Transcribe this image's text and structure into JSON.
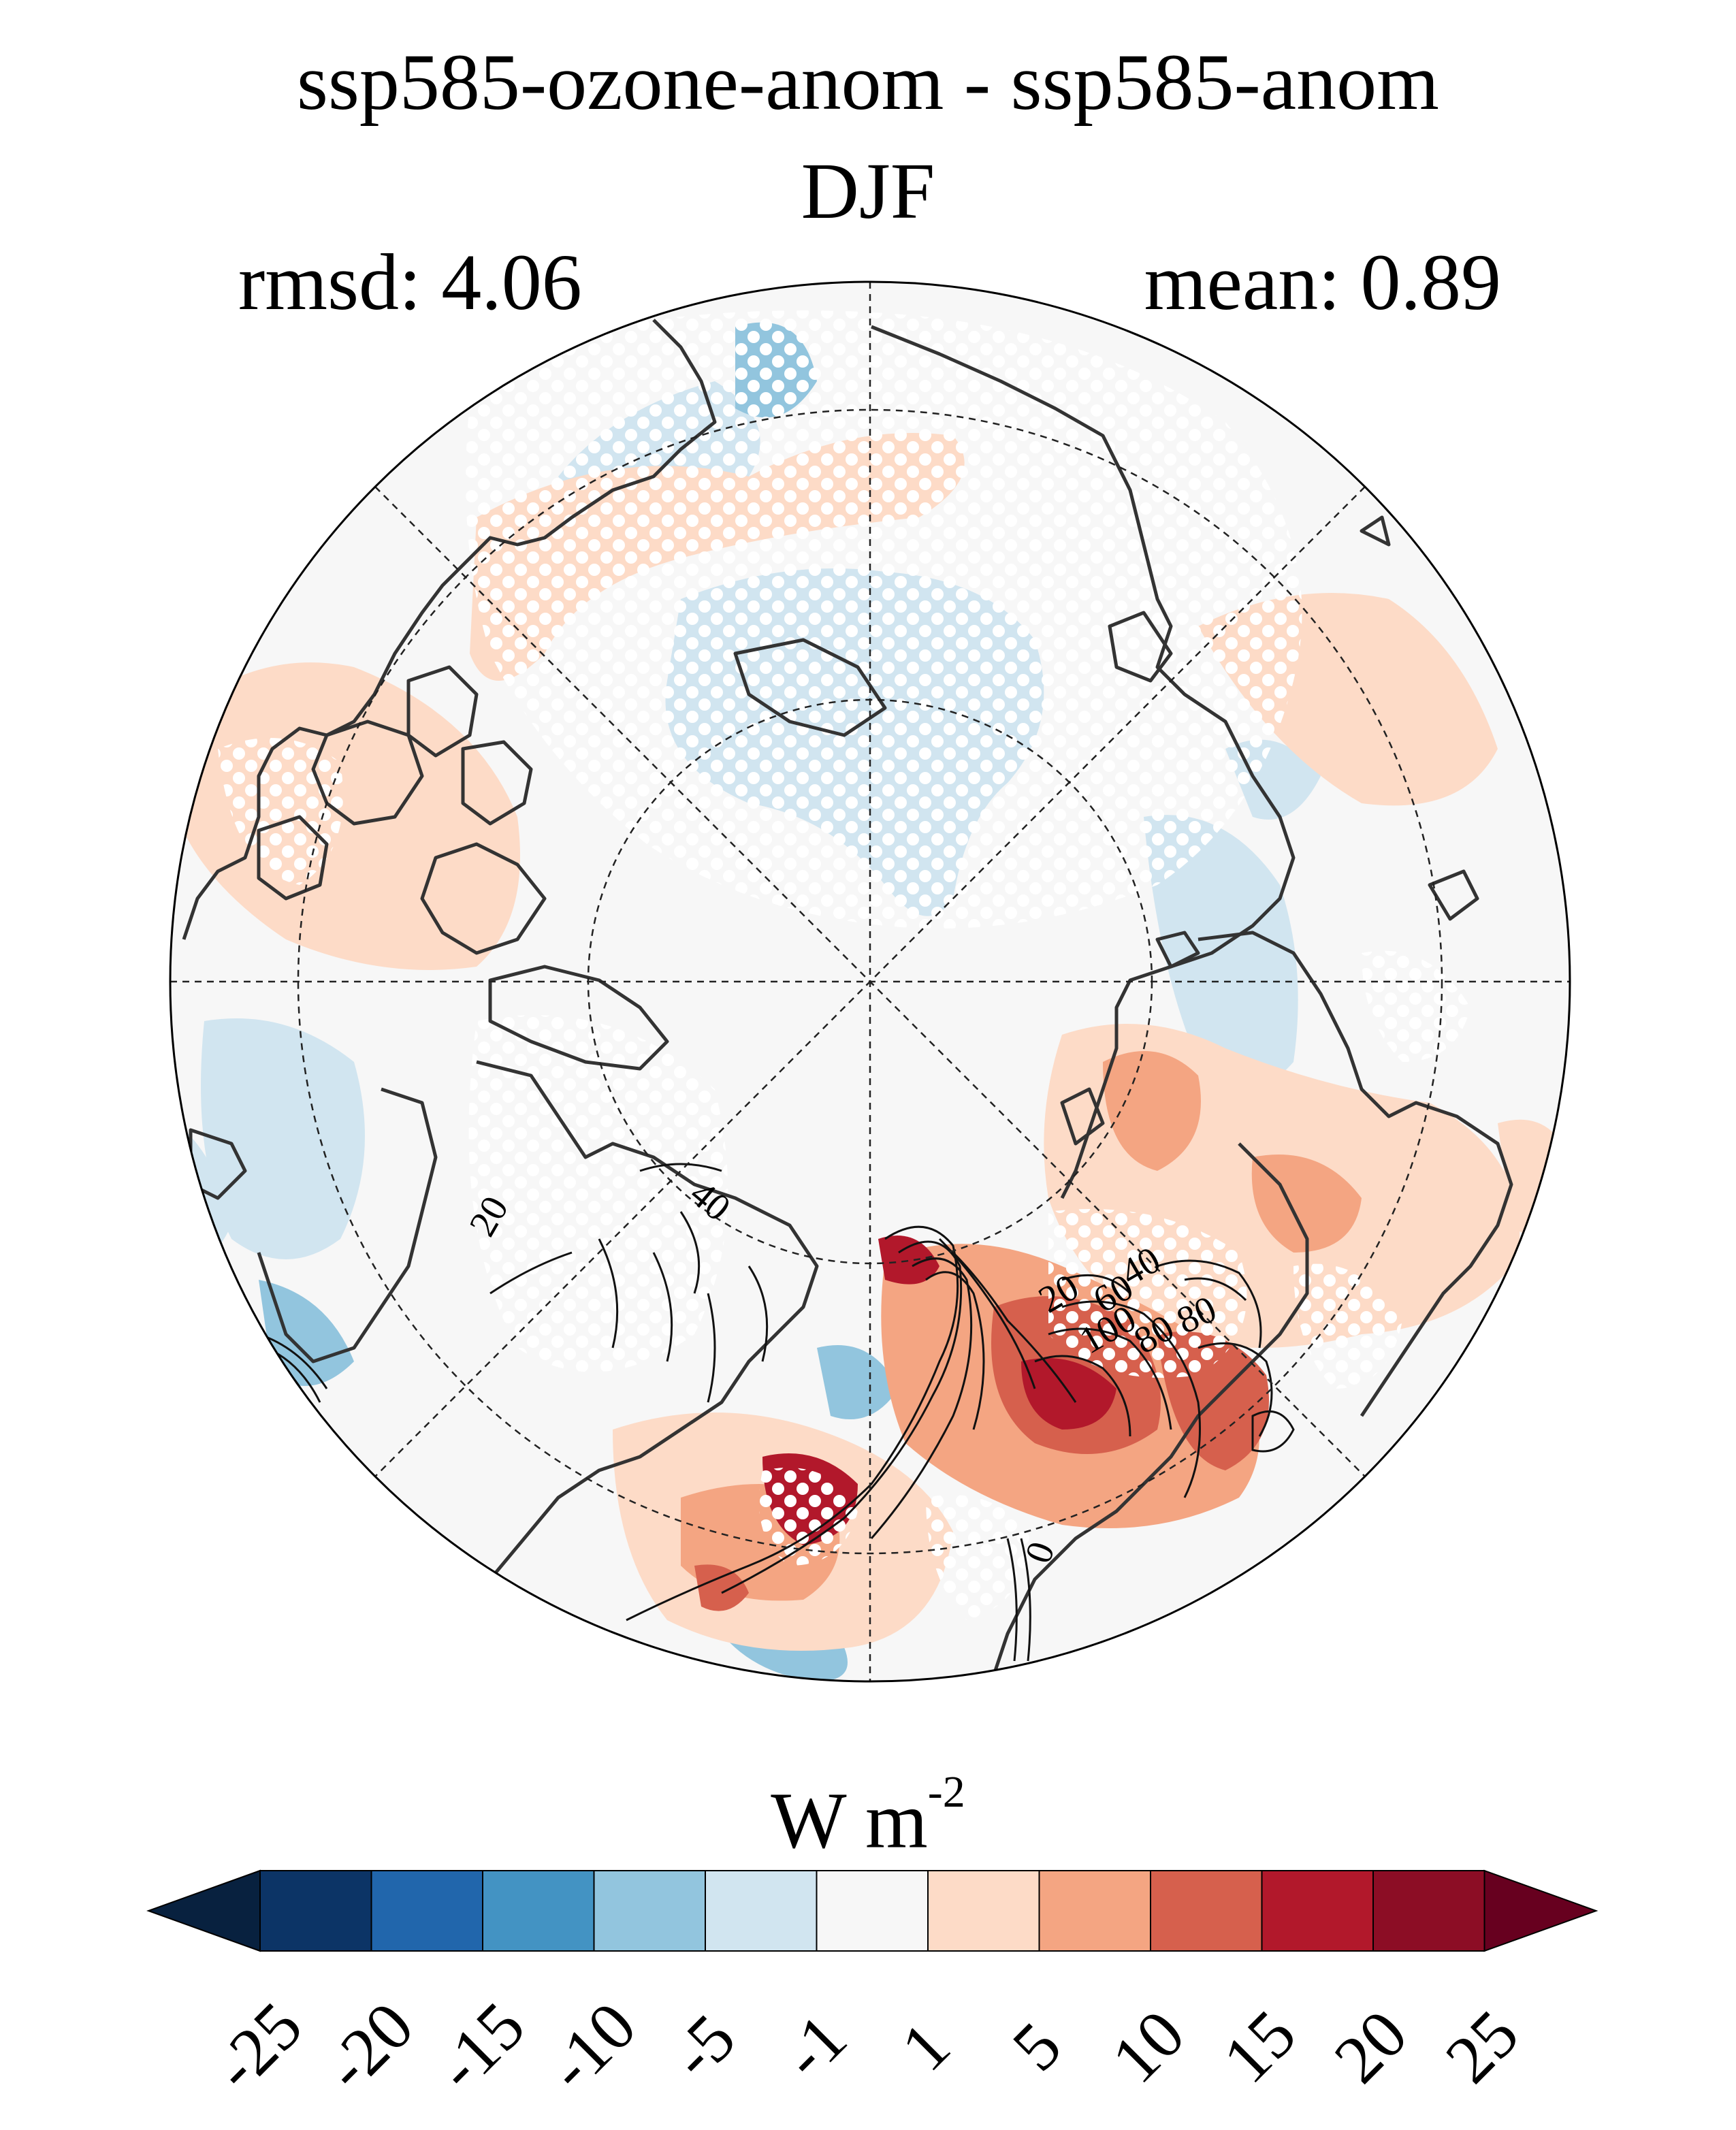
{
  "title": {
    "line1": "ssp585-ozone-anom - ssp585-anom",
    "line2": "DJF"
  },
  "stats": {
    "left": "rmsd: 4.06",
    "right": "mean: 0.89"
  },
  "map": {
    "projection": "north-polar-stereographic",
    "stippling": "white dots",
    "contour_labels": [
      "20",
      "40",
      "20",
      "40",
      "60",
      "80",
      "100",
      "80",
      "0"
    ]
  },
  "colorbar": {
    "units": "W m",
    "units_exp": "-2",
    "ticks": [
      "-25",
      "-20",
      "-15",
      "-10",
      "-5",
      "-1",
      "1",
      "5",
      "10",
      "15",
      "20",
      "25"
    ],
    "colors": [
      "#08213f",
      "#0c3466",
      "#2166ac",
      "#4393c3",
      "#92c5de",
      "#d1e5f0",
      "#f7f7f7",
      "#fddbc7",
      "#f4a582",
      "#d6604d",
      "#b2182b",
      "#8c0d25",
      "#67001f"
    ]
  }
}
